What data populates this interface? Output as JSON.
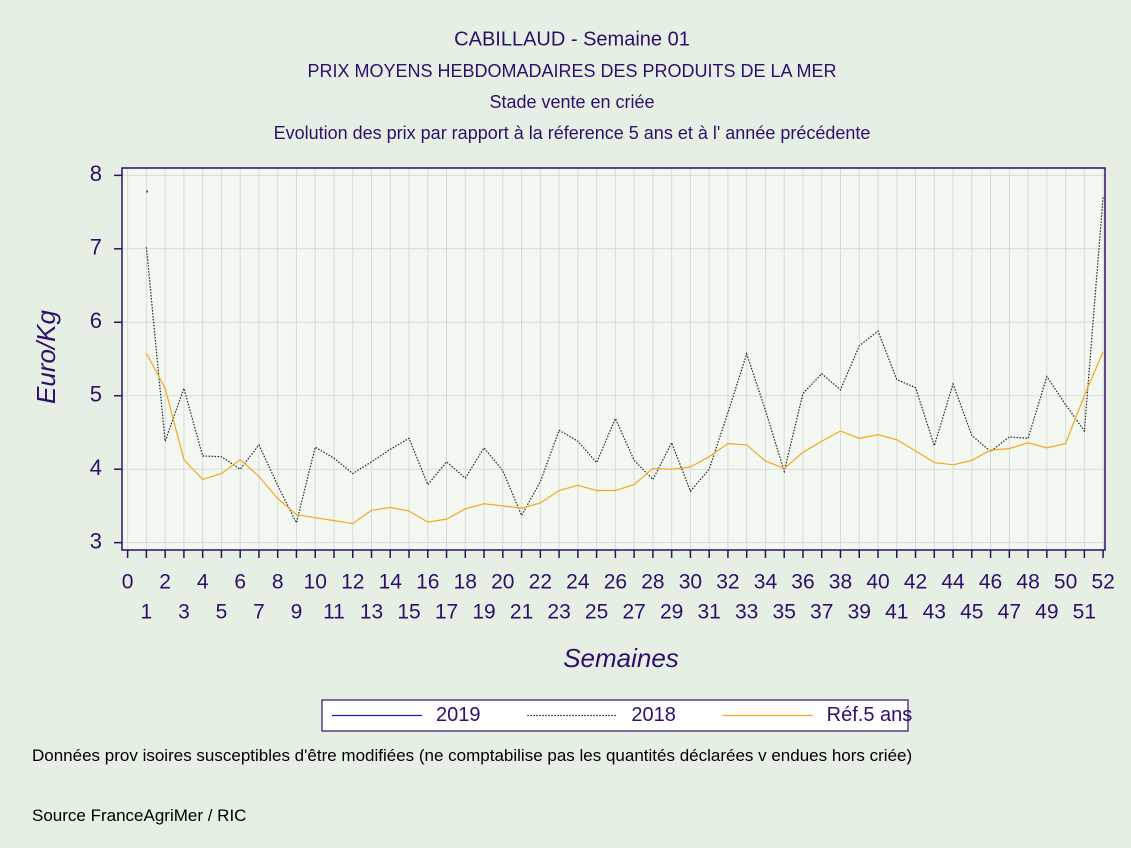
{
  "chart_data": {
    "type": "line",
    "title": "CABILLAUD - Semaine 01",
    "subtitles": [
      "PRIX MOYENS HEBDOMADAIRES DES PRODUITS DE LA MER",
      "Stade vente en criée",
      "Evolution des prix par rapport à la réference 5 ans et à l' année précédente"
    ],
    "x_label": "Semaines",
    "y_label": "Euro/Kg",
    "x": [
      1,
      2,
      3,
      4,
      5,
      6,
      7,
      8,
      9,
      10,
      11,
      12,
      13,
      14,
      15,
      16,
      17,
      18,
      19,
      20,
      21,
      22,
      23,
      24,
      25,
      26,
      27,
      28,
      29,
      30,
      31,
      32,
      33,
      34,
      35,
      36,
      37,
      38,
      39,
      40,
      41,
      42,
      43,
      44,
      45,
      46,
      47,
      48,
      49,
      50,
      51,
      52
    ],
    "series": [
      {
        "name": "2019",
        "color": "#1a1acc",
        "style": "solid",
        "values": [
          7.78,
          null,
          null,
          null,
          null,
          null,
          null,
          null,
          null,
          null,
          null,
          null,
          null,
          null,
          null,
          null,
          null,
          null,
          null,
          null,
          null,
          null,
          null,
          null,
          null,
          null,
          null,
          null,
          null,
          null,
          null,
          null,
          null,
          null,
          null,
          null,
          null,
          null,
          null,
          null,
          null,
          null,
          null,
          null,
          null,
          null,
          null,
          null,
          null,
          null,
          null,
          null
        ]
      },
      {
        "name": "2018",
        "color": "#222222",
        "style": "dotted",
        "values": [
          7.02,
          4.38,
          5.1,
          4.18,
          4.17,
          4.0,
          4.33,
          3.78,
          3.27,
          4.3,
          4.15,
          3.94,
          4.1,
          4.27,
          4.42,
          3.79,
          4.1,
          3.88,
          4.29,
          3.98,
          3.37,
          3.83,
          4.53,
          4.38,
          4.09,
          4.69,
          4.12,
          3.86,
          4.36,
          3.7,
          4.0,
          4.77,
          5.57,
          4.8,
          3.97,
          5.03,
          5.3,
          5.08,
          5.68,
          5.88,
          5.22,
          5.11,
          4.32,
          5.16,
          4.46,
          4.24,
          4.44,
          4.42,
          5.26,
          4.88,
          4.52,
          7.72
        ]
      },
      {
        "name": "Réf.5 ans",
        "color": "#f2a81d",
        "style": "solid",
        "values": [
          5.58,
          5.1,
          4.13,
          3.86,
          3.94,
          4.13,
          3.9,
          3.6,
          3.38,
          3.34,
          3.3,
          3.26,
          3.44,
          3.48,
          3.43,
          3.28,
          3.32,
          3.46,
          3.53,
          3.5,
          3.47,
          3.54,
          3.71,
          3.78,
          3.71,
          3.71,
          3.79,
          4.01,
          4.0,
          4.03,
          4.17,
          4.35,
          4.33,
          4.11,
          4.01,
          4.23,
          4.38,
          4.52,
          4.42,
          4.47,
          4.4,
          4.25,
          4.09,
          4.06,
          4.12,
          4.26,
          4.28,
          4.36,
          4.29,
          4.35,
          5.0,
          5.6
        ]
      }
    ],
    "xlim": [
      -0.3,
      52.1
    ],
    "ylim": [
      2.9,
      8.1
    ],
    "xticks": [
      0,
      1,
      2,
      3,
      4,
      5,
      6,
      7,
      8,
      9,
      10,
      11,
      12,
      13,
      14,
      15,
      16,
      17,
      18,
      19,
      20,
      21,
      22,
      23,
      24,
      25,
      26,
      27,
      28,
      29,
      30,
      31,
      32,
      33,
      34,
      35,
      36,
      37,
      38,
      39,
      40,
      41,
      42,
      43,
      44,
      45,
      46,
      47,
      48,
      49,
      50,
      51,
      52
    ],
    "yticks": [
      3,
      4,
      5,
      6,
      7,
      8
    ],
    "grid": true,
    "legend": "bottom",
    "notes": [
      "Données prov isoires susceptibles d'être modifiées (ne comptabilise pas les quantités déclarées v endues hors criée)",
      "Source FranceAgriMer / RIC"
    ]
  }
}
